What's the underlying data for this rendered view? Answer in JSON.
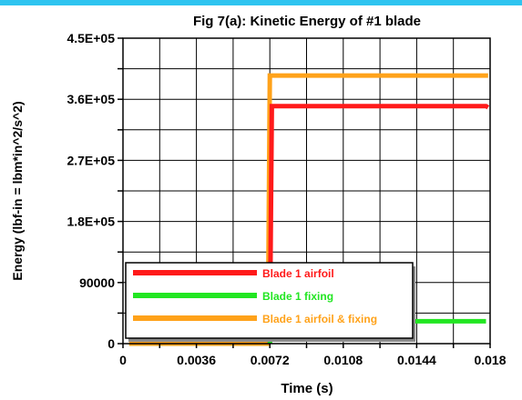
{
  "chart_data": {
    "type": "line",
    "title": "Fig 7(a): Kinetic Energy of #1 blade",
    "xlabel": "Time (s)",
    "ylabel": "Energy (lbf-in = lbm*in^2/s^2)",
    "xlim": [
      0,
      0.018
    ],
    "ylim": [
      0,
      450000
    ],
    "x_ticks": [
      0,
      0.0018,
      0.0036,
      0.0054,
      0.0072,
      0.009,
      0.0108,
      0.0126,
      0.0144,
      0.0162,
      0.018
    ],
    "x_tick_labels": [
      "0",
      "",
      "0.0036",
      "",
      "0.0072",
      "",
      "0.0108",
      "",
      "0.0144",
      "",
      "0.018"
    ],
    "y_ticks": [
      0,
      45000,
      90000,
      135000,
      180000,
      225000,
      270000,
      315000,
      360000,
      405000,
      450000
    ],
    "y_tick_labels": [
      "0",
      "",
      "90000",
      "",
      "1.8E+05",
      "",
      "2.7E+05",
      "",
      "3.6E+05",
      "",
      "4.5E+05"
    ],
    "grid": true,
    "legend_position": "bottom-left",
    "series": [
      {
        "name": "Blade 1 airfoil",
        "color": "#ff1a1a",
        "points": [
          [
            0.0072,
            0
          ],
          [
            0.0073,
            350000
          ],
          [
            0.0178,
            350000
          ],
          [
            0.0179,
            348000
          ]
        ]
      },
      {
        "name": "Blade 1 fixing",
        "color": "#22e622",
        "points": [
          [
            0.0072,
            0
          ],
          [
            0.0073,
            33000
          ],
          [
            0.0178,
            33000
          ]
        ]
      },
      {
        "name": "Blade 1 airfoil & fixing",
        "color": "#ffa21a",
        "points": [
          [
            0.0003,
            0
          ],
          [
            0.0071,
            0
          ],
          [
            0.0072,
            395000
          ],
          [
            0.0179,
            395000
          ]
        ]
      }
    ]
  }
}
